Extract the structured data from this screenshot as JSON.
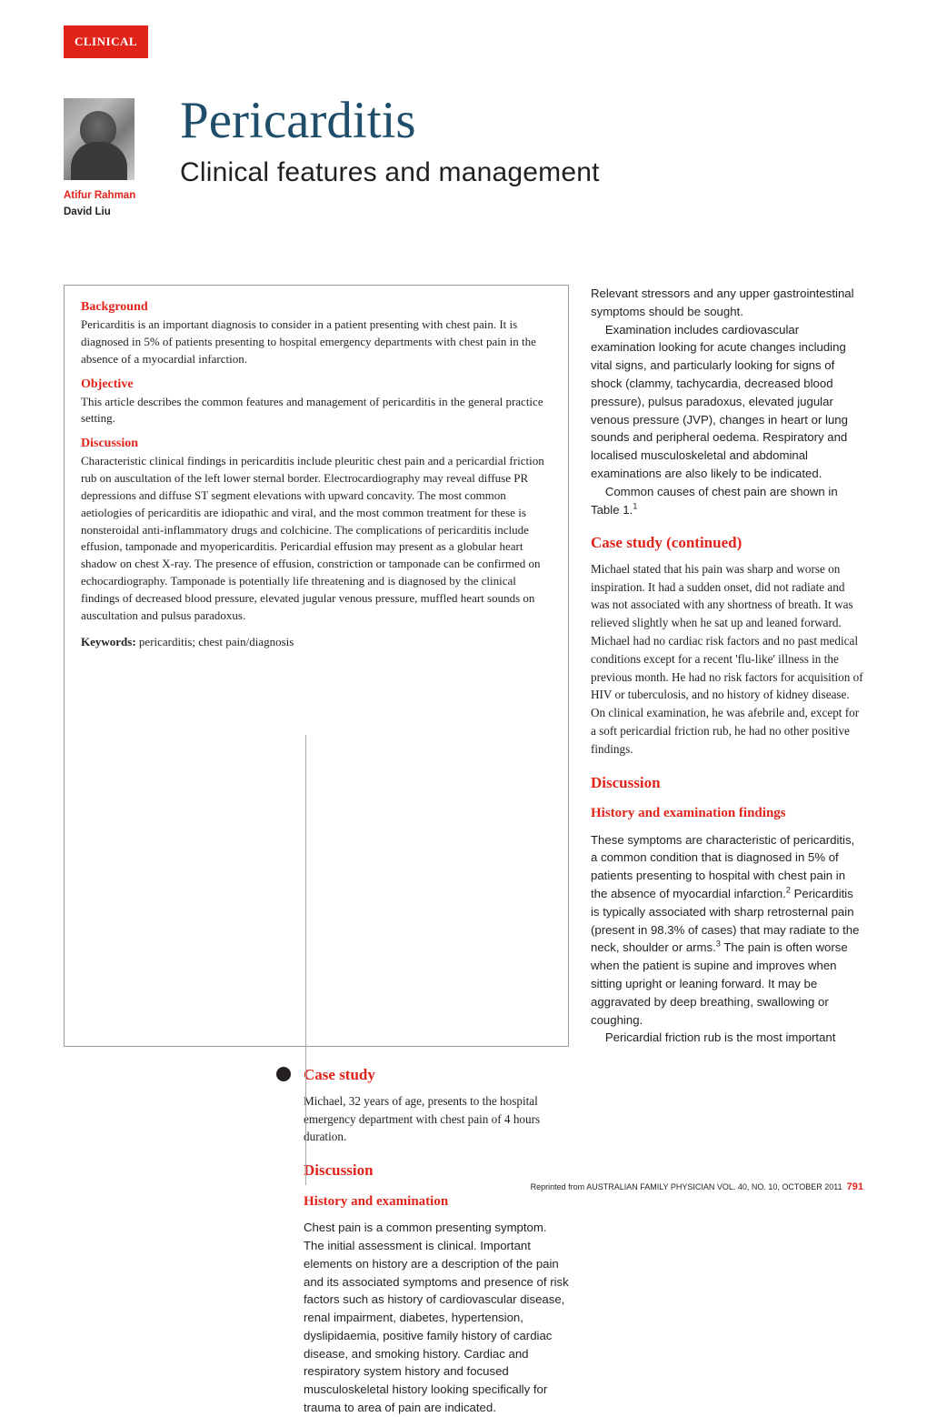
{
  "badge": "CLINICAL",
  "authors": {
    "a1": "Atifur Rahman",
    "a2": "David Liu"
  },
  "title": "Pericarditis",
  "subtitle": "Clinical features and management",
  "abstract": {
    "h1": "Background",
    "p1": "Pericarditis is an important diagnosis to consider in a patient presenting with chest pain. It is diagnosed in 5% of patients presenting to hospital emergency departments with chest pain in the absence of a myocardial infarction.",
    "h2": "Objective",
    "p2": "This article describes the common features and management of pericarditis in the general practice setting.",
    "h3": "Discussion",
    "p3": "Characteristic clinical findings in pericarditis include pleuritic chest pain and a pericardial friction rub on auscultation of the left lower sternal border. Electrocardiography may reveal diffuse PR depressions and diffuse ST segment elevations with upward concavity. The most common aetiologies of pericarditis are idiopathic and viral, and the most common treatment for these is nonsteroidal anti-inflammatory drugs and colchicine. The complications of pericarditis include effusion, tamponade and myopericarditis. Pericardial effusion may present as a globular heart shadow on chest X-ray. The presence of effusion, constriction or tamponade can be confirmed on echocardiography. Tamponade is potentially life threatening and is diagnosed by the clinical findings of decreased blood pressure, elevated jugular venous pressure, muffled heart sounds on auscultation and pulsus paradoxus.",
    "kw_label": "Keywords:",
    "kw": " pericarditis; chest pain/diagnosis"
  },
  "rc": {
    "p1": "Relevant stressors and any upper gastrointestinal symptoms should be sought.",
    "p2": "Examination includes cardiovascular examination looking for acute changes including vital signs, and particularly looking for signs of shock (clammy, tachycardia, decreased blood pressure), pulsus paradoxus, elevated jugular venous pressure (JVP), changes in heart or lung sounds and peripheral oedema. Respiratory and localised musculoskeletal and abdominal examinations are also likely to be indicated.",
    "p3a": "Common causes of chest pain are shown in Table 1.",
    "p3sup": "1",
    "h_case": "Case study (continued)",
    "case1": "Michael stated that his pain was sharp and worse on inspiration. It had a sudden onset, did not radiate and was not associated with any shortness of breath. It was relieved slightly when he sat up and leaned forward.",
    "case2": "Michael had no cardiac risk factors and no past medical conditions except for a recent 'flu-like' illness in the previous month. He had no risk factors for acquisition of HIV or tuberculosis, and no history of kidney disease.",
    "case3": "On clinical examination, he was afebrile and, except for a soft pericardial friction rub, he had no other positive findings.",
    "h_disc2": "Discussion",
    "h_hef": "History and examination findings",
    "d2p1a": "These symptoms are characteristic of pericarditis, a common condition that is diagnosed in 5% of patients presenting to hospital with chest pain in the absence of myocardial infarction.",
    "d2sup1": "2",
    "d2p1b": " Pericarditis is typically associated with sharp retrosternal pain (present in 98.3% of cases) that may radiate to the neck, shoulder or arms.",
    "d2sup2": "3",
    "d2p1c": " The pain is often worse when the patient is supine and improves when sitting upright or leaning forward. It may be aggravated by deep breathing, swallowing or coughing.",
    "d2p2": "Pericardial friction rub is the most important"
  },
  "mid": {
    "h_case": "Case study",
    "case": "Michael, 32 years of age, presents to the hospital emergency department with chest pain of 4 hours duration.",
    "h_disc": "Discussion",
    "h_he": "History and examination",
    "p1": "Chest pain is a common presenting symptom. The initial assessment is clinical. Important elements on history are a description of the pain and its associated symptoms and presence of risk factors such as history of cardiovascular disease, renal impairment, diabetes, hypertension, dyslipidaemia, positive family history of cardiac disease, and smoking history. Cardiac and respiratory system history and focused musculoskeletal history looking specifically for trauma to area of pain are indicated."
  },
  "footer": {
    "pre": "Reprinted from ",
    "src": "AUSTRALIAN FAMILY PHYSICIAN VOL. 40, NO. 10, OCTOBER 2011",
    "page": "791"
  },
  "colors": {
    "red": "#e2231a",
    "blue": "#1f4e6b",
    "text": "#231f20"
  }
}
